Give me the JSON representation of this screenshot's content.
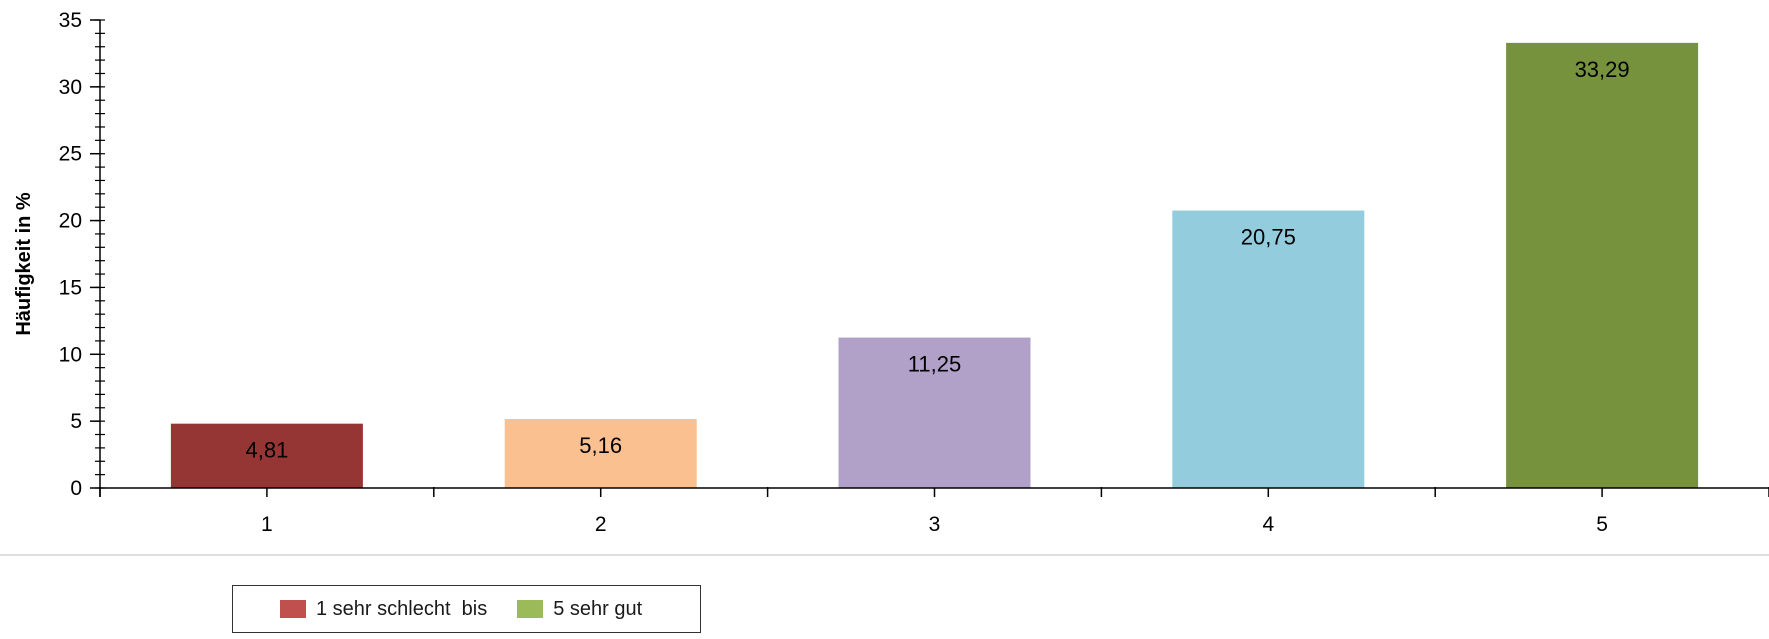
{
  "chart_data": {
    "type": "bar",
    "title": "",
    "xlabel": "",
    "ylabel": "Häufigkeit in %",
    "categories": [
      "1",
      "2",
      "3",
      "4",
      "5"
    ],
    "values": [
      4.81,
      5.16,
      11.25,
      20.75,
      33.29
    ],
    "value_labels": [
      "4,81",
      "5,16",
      "11,25",
      "20,75",
      "33,29"
    ],
    "bar_colors": [
      "#963634",
      "#FAC090",
      "#B1A0C7",
      "#93CDDD",
      "#76923C"
    ],
    "ylim": [
      0,
      35
    ],
    "yticks": [
      0,
      5,
      10,
      15,
      20,
      25,
      30,
      35
    ],
    "ytick_labels": [
      "0",
      "5",
      "10",
      "15",
      "20",
      "25",
      "30",
      "35"
    ],
    "y_minor_step": 1,
    "grid": false,
    "legend_position": "bottom-left",
    "legend": [
      {
        "label": "1 sehr schlecht  bis",
        "color": "#C0504D"
      },
      {
        "label": "5 sehr gut",
        "color": "#9BBB59"
      }
    ]
  }
}
